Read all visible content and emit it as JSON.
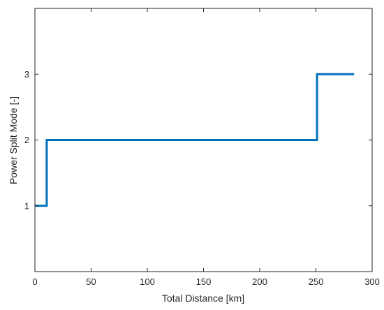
{
  "chart_data": {
    "type": "line",
    "xlabel": "Total Distance [km]",
    "ylabel": "Power Split Mode [-]",
    "xlim": [
      0,
      300
    ],
    "ylim": [
      0,
      4
    ],
    "x_ticks": [
      0,
      50,
      100,
      150,
      200,
      250,
      300
    ],
    "x_tick_labels": [
      "0",
      "50",
      "100",
      "150",
      "200",
      "250",
      "300"
    ],
    "y_ticks": [
      1,
      2,
      3
    ],
    "y_tick_labels": [
      "1",
      "2",
      "3"
    ],
    "grid": false,
    "series": [
      {
        "color": "#0072BD",
        "step": true,
        "x": [
          0,
          10.5,
          10.5,
          251,
          251,
          284
        ],
        "y": [
          1,
          1,
          2,
          2,
          3,
          3
        ]
      }
    ]
  }
}
